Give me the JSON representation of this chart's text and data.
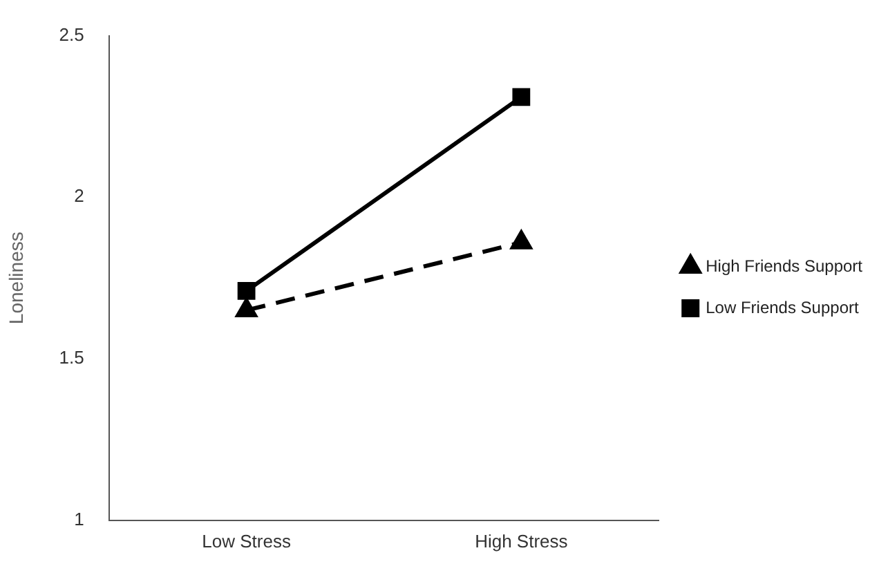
{
  "chart_data": {
    "type": "line",
    "ylabel": "Loneliness",
    "categories": [
      "Low Stress",
      "High Stress"
    ],
    "ylim": [
      1,
      2.5
    ],
    "yticks": [
      1,
      1.5,
      2,
      2.5
    ],
    "grid": false,
    "legend": "right",
    "series": [
      {
        "name": "High Friends Support",
        "color": "#000000",
        "values": [
          1.65,
          1.86
        ],
        "marker": "triangle",
        "line_style": "dashed"
      },
      {
        "name": "Low Friends Support",
        "color": "#000000",
        "values": [
          1.71,
          2.31
        ],
        "marker": "square",
        "line_style": "solid"
      }
    ]
  }
}
